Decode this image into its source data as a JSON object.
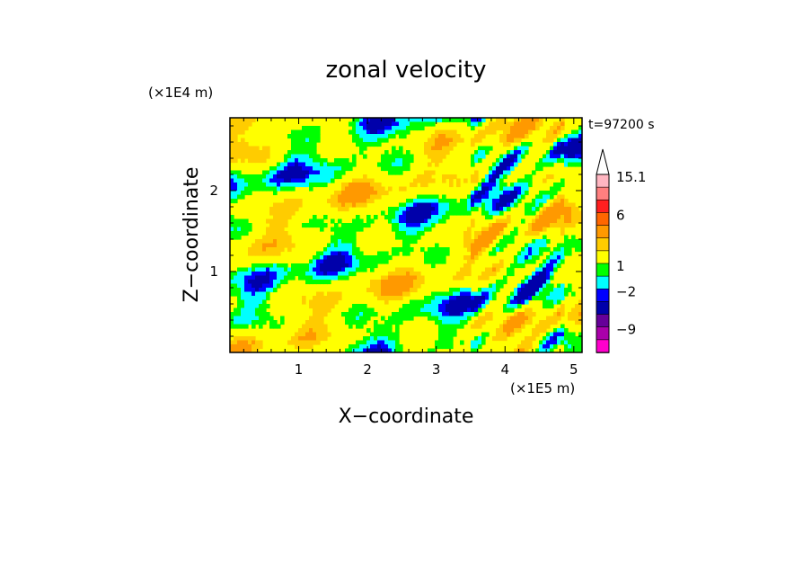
{
  "chart_data": {
    "type": "heatmap",
    "title": "zonal velocity",
    "xlabel": "X−coordinate",
    "ylabel": "Z−coordinate",
    "x_unit": "(×1E5 m)",
    "y_unit": "(×1E4 m)",
    "time_label": "t=97200 s",
    "xlim": [
      0.0,
      5.12
    ],
    "ylim": [
      0.0,
      2.9
    ],
    "x_ticks": [
      {
        "value": 1,
        "label": "1"
      },
      {
        "value": 2,
        "label": "2"
      },
      {
        "value": 3,
        "label": "3"
      },
      {
        "value": 4,
        "label": "4"
      },
      {
        "value": 5,
        "label": "5"
      }
    ],
    "y_ticks": [
      {
        "value": 1,
        "label": "1"
      },
      {
        "value": 2,
        "label": "2"
      }
    ],
    "colorbar": {
      "levels": [
        {
          "upper": 15.1,
          "color": "#ffb6c1"
        },
        {
          "upper": 12,
          "color": "#ff7f7f"
        },
        {
          "upper": 9,
          "color": "#ff1f1f"
        },
        {
          "upper": 6,
          "color": "#ff6600"
        },
        {
          "upper": 4,
          "color": "#ff9900"
        },
        {
          "upper": 3,
          "color": "#ffcc00"
        },
        {
          "upper": 2,
          "color": "#ffff00"
        },
        {
          "upper": 1,
          "color": "#00ff00"
        },
        {
          "upper": 0,
          "color": "#00ffff"
        },
        {
          "upper": -2,
          "color": "#0000ff"
        },
        {
          "upper": -4,
          "color": "#0000aa"
        },
        {
          "upper": -6,
          "color": "#660099"
        },
        {
          "upper": -9,
          "color": "#aa00aa"
        },
        {
          "upper": -12,
          "color": "#ff00cc"
        }
      ],
      "tick_labels": [
        {
          "value": 15.1,
          "label": "15.1"
        },
        {
          "value": 6,
          "label": "6"
        },
        {
          "value": 1,
          "label": "1"
        },
        {
          "value": -2,
          "label": "−2"
        },
        {
          "value": -9,
          "label": "−9"
        }
      ],
      "extend": "max"
    },
    "field_note_colors": {
      "background": "#ffff00",
      "green": "#00ff00",
      "cyan": "#00ffff",
      "orange": "#ffcc00",
      "dark_orange": "#ff9900",
      "blue": "#0000ff",
      "dark_blue": "#0000aa"
    }
  }
}
